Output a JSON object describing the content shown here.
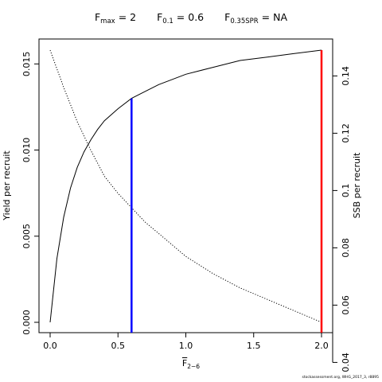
{
  "title": {
    "fmax": {
      "base": "F",
      "sub": "max",
      "value": "= 2"
    },
    "f01": {
      "base": "F",
      "sub": "0.1",
      "value": "= 0.6"
    },
    "f035": {
      "base": "F",
      "sub": "0.35SPR",
      "value": "= NA"
    }
  },
  "x_axis": {
    "base": "F",
    "sub": "2−6"
  },
  "footer": "stockassessment.org, WHG_2017_3, r8895",
  "chart_data": {
    "type": "line",
    "xlim": [
      0,
      2
    ],
    "x_ticks": [
      0,
      0.5,
      1,
      1.5,
      2
    ],
    "x_tick_labels": [
      "0.0",
      "0.5",
      "1.0",
      "1.5",
      "2.0"
    ],
    "y_left": {
      "label": "Yield per recruit",
      "ticks": [
        0,
        0.005,
        0.01,
        0.015
      ],
      "tick_labels": [
        "0.000",
        "0.005",
        "0.010",
        "0.015"
      ],
      "range": [
        0,
        0.0158
      ]
    },
    "y_right": {
      "label": "SSB per recruit",
      "ticks": [
        0.04,
        0.06,
        0.08,
        0.1,
        0.12,
        0.14
      ],
      "tick_labels": [
        "0.04",
        "0.06",
        "0.08",
        "0.1",
        "0.12",
        "0.14"
      ],
      "range": [
        0.054,
        0.149
      ]
    },
    "series": [
      {
        "axis": "left",
        "style": "solid",
        "color": "#000000",
        "x": [
          0,
          0.05,
          0.1,
          0.15,
          0.2,
          0.25,
          0.3,
          0.35,
          0.4,
          0.5,
          0.6,
          0.7,
          0.8,
          0.9,
          1.0,
          1.2,
          1.4,
          1.6,
          1.8,
          2.0
        ],
        "y": [
          0,
          0.0037,
          0.0061,
          0.0078,
          0.009,
          0.0099,
          0.0106,
          0.0112,
          0.0117,
          0.0124,
          0.013,
          0.0134,
          0.0138,
          0.0141,
          0.0144,
          0.0148,
          0.0152,
          0.0154,
          0.0156,
          0.0158
        ]
      },
      {
        "axis": "right",
        "style": "dotted",
        "color": "#000000",
        "x": [
          0,
          0.1,
          0.2,
          0.3,
          0.4,
          0.5,
          0.6,
          0.7,
          0.8,
          0.9,
          1.0,
          1.2,
          1.4,
          1.6,
          1.8,
          2.0
        ],
        "y": [
          0.149,
          0.136,
          0.124,
          0.114,
          0.105,
          0.099,
          0.094,
          0.089,
          0.085,
          0.081,
          0.077,
          0.071,
          0.066,
          0.062,
          0.058,
          0.054
        ]
      }
    ],
    "reference_lines": [
      {
        "name": "F0.1",
        "x": 0.6,
        "y_top": 0.013,
        "color": "#0000ff"
      },
      {
        "name": "Fmax",
        "x": 2.0,
        "y_top": 0.0158,
        "color": "#ff0000"
      }
    ],
    "grid": false,
    "legend": "none"
  }
}
